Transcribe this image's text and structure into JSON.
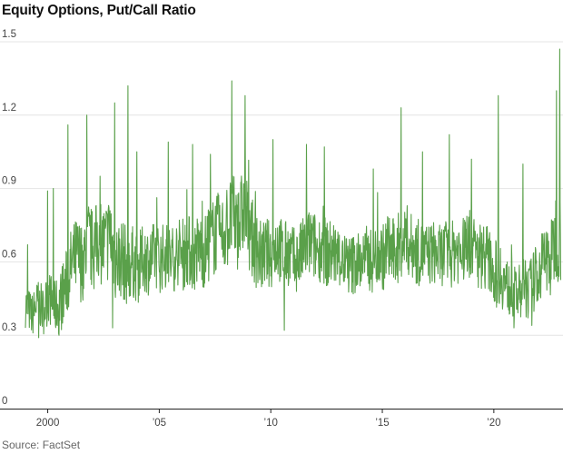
{
  "title": "Equity Options, Put/Call Ratio",
  "source": "Source: FactSet",
  "colors": {
    "line": "#5aa04a",
    "grid": "#e4e4e4",
    "axis": "#222222"
  },
  "chart_data": {
    "type": "line",
    "title": "Equity Options, Put/Call Ratio",
    "xlabel": "",
    "ylabel": "",
    "xlim": [
      1999.0,
      2023.1
    ],
    "ylim": [
      0,
      1.5
    ],
    "y_ticks": [
      0,
      0.3,
      0.6,
      0.9,
      1.2,
      1.5
    ],
    "y_tick_labels": [
      "0",
      "0.3",
      "0.6",
      "0.9",
      "1.2",
      "1.5"
    ],
    "x_ticks": [
      2000,
      2005,
      2010,
      2015,
      2020
    ],
    "x_tick_labels": [
      "2000",
      "’05",
      "’10",
      "’15",
      "’20"
    ],
    "grid": "horizontal",
    "series": [
      {
        "x": [
          1999.05,
          1999.3,
          1999.55,
          1999.8,
          2000.05,
          2000.3,
          2000.55,
          2000.8,
          2001.05,
          2001.3,
          2001.55,
          2001.8,
          2002.05,
          2002.3,
          2002.55,
          2002.8,
          2003.05,
          2003.3,
          2003.55,
          2003.8,
          2004.05,
          2004.3,
          2004.55,
          2004.8,
          2005.05,
          2005.3,
          2005.55,
          2005.8,
          2006.05,
          2006.3,
          2006.55,
          2006.8,
          2007.05,
          2007.3,
          2007.55,
          2007.8,
          2008.05,
          2008.3,
          2008.55,
          2008.8,
          2009.05,
          2009.3,
          2009.55,
          2009.8,
          2010.05,
          2010.3,
          2010.55,
          2010.8,
          2011.05,
          2011.3,
          2011.55,
          2011.8,
          2012.05,
          2012.3,
          2012.55,
          2012.8,
          2013.05,
          2013.3,
          2013.55,
          2013.8,
          2014.05,
          2014.3,
          2014.55,
          2014.8,
          2015.05,
          2015.3,
          2015.55,
          2015.8,
          2016.05,
          2016.3,
          2016.55,
          2016.8,
          2017.05,
          2017.3,
          2017.55,
          2017.8,
          2018.05,
          2018.3,
          2018.55,
          2018.8,
          2019.05,
          2019.3,
          2019.55,
          2019.8,
          2020.05,
          2020.3,
          2020.55,
          2020.8,
          2021.05,
          2021.3,
          2021.55,
          2021.8,
          2022.05,
          2022.3,
          2022.55,
          2022.8,
          2023.0
        ],
        "y": [
          0.42,
          0.38,
          0.44,
          0.4,
          0.46,
          0.41,
          0.43,
          0.5,
          0.58,
          0.62,
          0.6,
          0.68,
          0.64,
          0.7,
          0.66,
          0.72,
          0.6,
          0.62,
          0.58,
          0.6,
          0.57,
          0.62,
          0.6,
          0.63,
          0.61,
          0.63,
          0.6,
          0.64,
          0.63,
          0.65,
          0.62,
          0.66,
          0.64,
          0.68,
          0.72,
          0.7,
          0.75,
          0.78,
          0.74,
          0.82,
          0.72,
          0.66,
          0.62,
          0.64,
          0.63,
          0.68,
          0.62,
          0.64,
          0.6,
          0.62,
          0.66,
          0.68,
          0.65,
          0.66,
          0.63,
          0.64,
          0.62,
          0.6,
          0.58,
          0.6,
          0.6,
          0.62,
          0.6,
          0.64,
          0.62,
          0.66,
          0.63,
          0.67,
          0.7,
          0.66,
          0.64,
          0.63,
          0.63,
          0.64,
          0.62,
          0.64,
          0.62,
          0.66,
          0.63,
          0.68,
          0.66,
          0.62,
          0.64,
          0.6,
          0.55,
          0.56,
          0.5,
          0.48,
          0.46,
          0.5,
          0.48,
          0.52,
          0.56,
          0.62,
          0.6,
          0.72,
          0.7
        ],
        "spread": [
          0.09,
          0.09,
          0.09,
          0.1,
          0.11,
          0.11,
          0.13,
          0.14,
          0.16,
          0.17,
          0.17,
          0.18,
          0.17,
          0.18,
          0.18,
          0.18,
          0.17,
          0.17,
          0.16,
          0.15,
          0.14,
          0.14,
          0.14,
          0.14,
          0.14,
          0.14,
          0.14,
          0.14,
          0.15,
          0.15,
          0.15,
          0.15,
          0.16,
          0.16,
          0.17,
          0.17,
          0.18,
          0.18,
          0.18,
          0.18,
          0.17,
          0.16,
          0.15,
          0.14,
          0.14,
          0.15,
          0.14,
          0.14,
          0.14,
          0.14,
          0.14,
          0.15,
          0.14,
          0.14,
          0.14,
          0.14,
          0.13,
          0.13,
          0.13,
          0.13,
          0.13,
          0.13,
          0.13,
          0.14,
          0.14,
          0.15,
          0.14,
          0.15,
          0.15,
          0.14,
          0.14,
          0.13,
          0.13,
          0.13,
          0.13,
          0.13,
          0.13,
          0.14,
          0.14,
          0.14,
          0.14,
          0.14,
          0.14,
          0.14,
          0.14,
          0.14,
          0.12,
          0.11,
          0.11,
          0.12,
          0.12,
          0.13,
          0.14,
          0.15,
          0.16,
          0.19,
          0.2
        ],
        "spikes": [
          {
            "x": 1999.1,
            "y": 0.67
          },
          {
            "x": 2000.0,
            "y": 0.89
          },
          {
            "x": 2000.25,
            "y": 0.9
          },
          {
            "x": 2000.9,
            "y": 1.16
          },
          {
            "x": 2001.75,
            "y": 1.2
          },
          {
            "x": 2003.0,
            "y": 1.25
          },
          {
            "x": 2003.6,
            "y": 1.32
          },
          {
            "x": 2004.0,
            "y": 1.05
          },
          {
            "x": 2005.4,
            "y": 1.09
          },
          {
            "x": 2006.5,
            "y": 1.08
          },
          {
            "x": 2007.3,
            "y": 1.04
          },
          {
            "x": 2008.25,
            "y": 1.34
          },
          {
            "x": 2008.85,
            "y": 1.28
          },
          {
            "x": 2010.1,
            "y": 1.1
          },
          {
            "x": 2011.6,
            "y": 1.08
          },
          {
            "x": 2012.4,
            "y": 1.07
          },
          {
            "x": 2014.6,
            "y": 0.98
          },
          {
            "x": 2015.85,
            "y": 1.23
          },
          {
            "x": 2016.8,
            "y": 1.05
          },
          {
            "x": 2018.0,
            "y": 1.12
          },
          {
            "x": 2019.0,
            "y": 1.02
          },
          {
            "x": 2020.2,
            "y": 1.28
          },
          {
            "x": 2021.3,
            "y": 1.0
          },
          {
            "x": 2022.8,
            "y": 1.3
          },
          {
            "x": 2022.95,
            "y": 1.47
          }
        ],
        "dips": [
          {
            "x": 1999.6,
            "y": 0.29
          },
          {
            "x": 2000.5,
            "y": 0.3
          },
          {
            "x": 2002.9,
            "y": 0.33
          },
          {
            "x": 2010.6,
            "y": 0.32
          },
          {
            "x": 2020.9,
            "y": 0.33
          },
          {
            "x": 2021.7,
            "y": 0.34
          }
        ]
      }
    ]
  }
}
